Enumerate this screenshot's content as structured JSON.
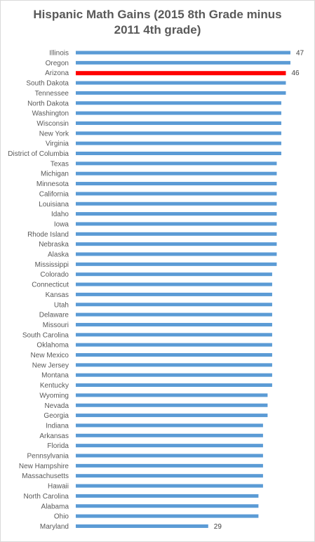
{
  "chart_data": {
    "type": "bar",
    "orientation": "horizontal",
    "title_lines": [
      "Hispanic Math Gains (2015 8th Grade minus",
      "2011 4th grade)"
    ],
    "categories": [
      "Illinois",
      "Oregon",
      "Arizona",
      "South Dakota",
      "Tennessee",
      "North Dakota",
      "Washington",
      "Wisconsin",
      "New York",
      "Virginia",
      "District of Columbia",
      "Texas",
      "Michigan",
      "Minnesota",
      "California",
      "Louisiana",
      "Idaho",
      "Iowa",
      "Rhode Island",
      "Nebraska",
      "Alaska",
      "Mississippi",
      "Colorado",
      "Connecticut",
      "Kansas",
      "Utah",
      "Delaware",
      "Missouri",
      "South Carolina",
      "Oklahoma",
      "New Mexico",
      "New Jersey",
      "Montana",
      "Kentucky",
      "Wyoming",
      "Nevada",
      "Georgia",
      "Indiana",
      "Arkansas",
      "Florida",
      "Pennsylvania",
      "New Hampshire",
      "Massachusetts",
      "Hawaii",
      "North Carolina",
      "Alabama",
      "Ohio",
      "Maryland"
    ],
    "values": [
      47,
      47,
      46,
      46,
      46,
      45,
      45,
      45,
      45,
      45,
      45,
      44,
      44,
      44,
      44,
      44,
      44,
      44,
      44,
      44,
      44,
      44,
      43,
      43,
      43,
      43,
      43,
      43,
      43,
      43,
      43,
      43,
      43,
      43,
      42,
      42,
      42,
      41,
      41,
      41,
      41,
      41,
      41,
      41,
      40,
      40,
      40,
      29
    ],
    "data_labels": [
      {
        "category": "Illinois",
        "label": "47"
      },
      {
        "category": "Arizona",
        "label": "46"
      },
      {
        "category": "Maryland",
        "label": "29"
      }
    ],
    "highlight": "Arizona",
    "colors": {
      "bar": "#5b9bd5",
      "highlight": "#ff0000",
      "text": "#595959",
      "label": "#404040"
    },
    "legend": "none",
    "grid": false
  }
}
